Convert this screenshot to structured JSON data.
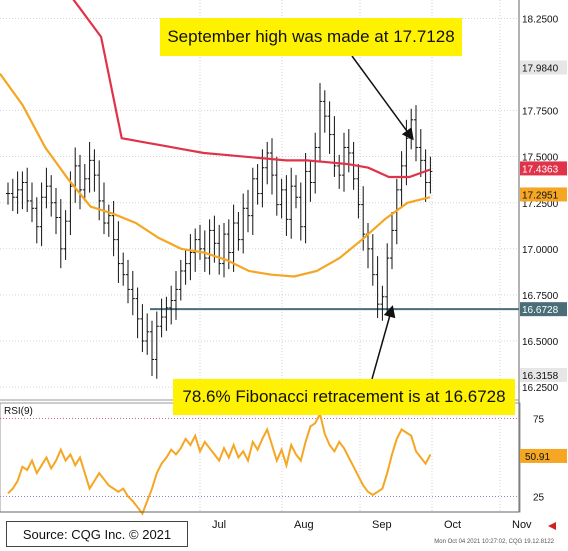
{
  "annotations": {
    "top": "September high was made at 17.7128",
    "bottom": "78.6% Fibonacci retracement is at 16.6728"
  },
  "source": "Source: CQG Inc. © 2021",
  "stamp": "Mon Oct 04 2021 10:27:02, CQG 19.12.8122",
  "chart_data": [
    {
      "type": "ohlc",
      "x_ticks": [
        "Jul",
        "Aug",
        "Sep",
        "Oct",
        "Nov"
      ],
      "y_ticks": [
        "16.2500",
        "16.5000",
        "16.7500",
        "17.0000",
        "17.2500",
        "17.5000",
        "17.7500",
        "18.2500"
      ],
      "ylim": [
        16.18,
        18.35
      ],
      "grid": true,
      "price_close": [
        17.3,
        17.28,
        17.32,
        17.36,
        17.26,
        17.22,
        17.12,
        17.28,
        17.34,
        17.25,
        17.17,
        17.0,
        17.15,
        17.34,
        17.45,
        17.32,
        17.38,
        17.48,
        17.4,
        17.26,
        17.14,
        17.18,
        17.05,
        16.92,
        16.86,
        16.78,
        16.73,
        16.62,
        16.5,
        16.55,
        16.4,
        16.58,
        16.63,
        16.68,
        16.72,
        16.78,
        16.88,
        16.92,
        16.98,
        17.05,
        17.0,
        16.95,
        17.1,
        17.03,
        16.92,
        17.08,
        16.98,
        17.14,
        17.05,
        17.22,
        17.18,
        17.38,
        17.3,
        17.44,
        17.52,
        17.4,
        17.24,
        17.32,
        17.16,
        17.34,
        17.28,
        17.12,
        17.42,
        17.36,
        17.55,
        17.8,
        17.72,
        17.62,
        17.45,
        17.4,
        17.55,
        17.52,
        17.38,
        17.24,
        17.08,
        17.0,
        16.86,
        16.7,
        16.74,
        16.95,
        17.1,
        17.32,
        17.45,
        17.6,
        17.7,
        17.55,
        17.48,
        17.36,
        17.42
      ],
      "ma_red": [
        17.6,
        17.58,
        17.56,
        17.54,
        17.52,
        17.51,
        17.5,
        17.49,
        17.48,
        17.48,
        17.47,
        17.46,
        17.44,
        17.39,
        17.39,
        17.43
      ],
      "ma_orange": [
        17.23,
        17.19,
        17.14,
        17.06,
        17.0,
        16.98,
        16.94,
        16.88,
        16.86,
        16.85,
        16.88,
        16.95,
        17.05,
        17.16,
        17.25,
        17.28
      ],
      "labels": {
        "last_high": "17.9840",
        "red_ma_value": "17.4363",
        "orange_ma_value": "17.2951",
        "fib_level": "16.6728",
        "last_low": "16.3158"
      },
      "fib_line": 16.6728
    },
    {
      "type": "line",
      "title": "RSI(9)",
      "ylim": [
        15,
        85
      ],
      "y_ticks": [
        "75",
        "25"
      ],
      "levels": [
        75,
        25
      ],
      "values": [
        27,
        30,
        35,
        44,
        42,
        48,
        40,
        45,
        50,
        43,
        48,
        55,
        48,
        52,
        45,
        50,
        40,
        30,
        35,
        40,
        36,
        32,
        30,
        28,
        30,
        25,
        22,
        18,
        14,
        22,
        30,
        40,
        46,
        50,
        55,
        52,
        56,
        62,
        58,
        64,
        54,
        60,
        56,
        52,
        48,
        56,
        50,
        58,
        50,
        54,
        48,
        60,
        55,
        62,
        68,
        58,
        48,
        55,
        45,
        58,
        52,
        48,
        60,
        70,
        72,
        78,
        65,
        58,
        54,
        60,
        56,
        50,
        44,
        38,
        32,
        28,
        26,
        28,
        30,
        40,
        52,
        62,
        68,
        66,
        64,
        54,
        50,
        46,
        52
      ],
      "last_label": "50.91"
    }
  ]
}
